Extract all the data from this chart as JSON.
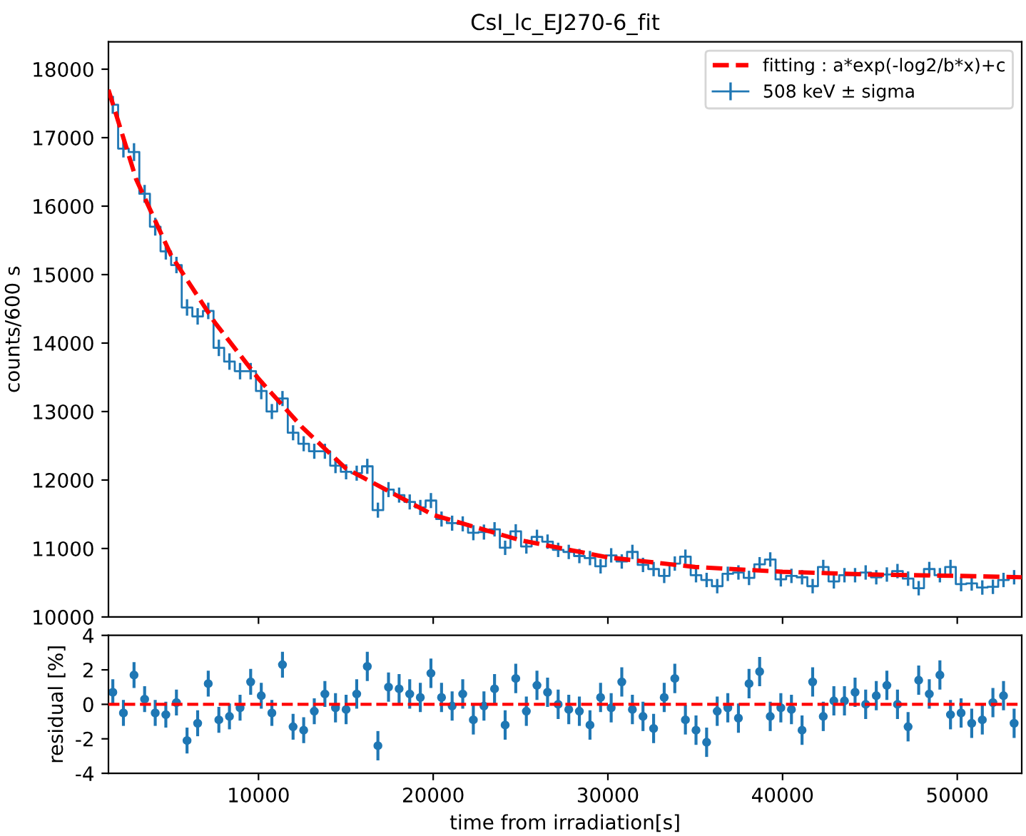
{
  "chart_data": [
    {
      "type": "step",
      "title": "CsI_lc_EJ270-6_fit",
      "ylabel": "counts/600 s",
      "xlim": [
        1410,
        53690
      ],
      "ylim": [
        10000,
        18400
      ],
      "yticks": [
        10000,
        11000,
        12000,
        13000,
        14000,
        15000,
        16000,
        17000,
        18000
      ],
      "tick_labels": "y",
      "legend": "top right",
      "series": [
        {
          "name": "508 keV ± sigma",
          "type": "step",
          "color": "#1f77b4",
          "x": [
            1660,
            2267,
            2874,
            3481,
            4088,
            4695,
            5302,
            5909,
            6516,
            7123,
            7730,
            8337,
            8944,
            9551,
            10158,
            10765,
            11372,
            11979,
            12586,
            13193,
            13800,
            14407,
            15014,
            15621,
            16228,
            16835,
            17442,
            18049,
            18656,
            19263,
            19870,
            20477,
            21084,
            21691,
            22298,
            22905,
            23512,
            24119,
            24726,
            25333,
            25940,
            26547,
            27154,
            27761,
            28368,
            28975,
            29582,
            30189,
            30796,
            31403,
            32010,
            32617,
            33224,
            33831,
            34438,
            35045,
            35652,
            36259,
            36866,
            37473,
            38080,
            38687,
            39294,
            39901,
            40508,
            41115,
            41722,
            42329,
            42936,
            43543,
            44150,
            44757,
            45364,
            45971,
            46578,
            47185,
            47792,
            48399,
            49006,
            49613,
            50220,
            50827,
            51434,
            52041,
            52648,
            53255
          ],
          "values": [
            17480,
            16840,
            16790,
            16180,
            15700,
            15340,
            15140,
            14520,
            14390,
            14470,
            13930,
            13730,
            13590,
            13590,
            13300,
            13000,
            13190,
            12690,
            12530,
            12420,
            12420,
            12210,
            12120,
            12100,
            12200,
            11560,
            11860,
            11780,
            11680,
            11600,
            11700,
            11430,
            11370,
            11360,
            11230,
            11240,
            11280,
            11010,
            11250,
            11030,
            11170,
            11100,
            10980,
            10950,
            10890,
            10860,
            10740,
            10900,
            10810,
            10950,
            10760,
            10700,
            10600,
            10780,
            10880,
            10610,
            10540,
            10450,
            10630,
            10650,
            10570,
            10770,
            10840,
            10550,
            10600,
            10580,
            10450,
            10730,
            10520,
            10610,
            10610,
            10650,
            10580,
            10620,
            10670,
            10560,
            10420,
            10700,
            10610,
            10730,
            10480,
            10490,
            10430,
            10440,
            10540,
            10580
          ],
          "errors": [
            130,
            130,
            130,
            130,
            130,
            120,
            120,
            120,
            120,
            120,
            120,
            120,
            120,
            120,
            120,
            110,
            110,
            110,
            110,
            110,
            110,
            110,
            110,
            110,
            110,
            110,
            110,
            110,
            110,
            110,
            110,
            110,
            110,
            110,
            110,
            110,
            105,
            105,
            105,
            105,
            105,
            105,
            105,
            105,
            105,
            105,
            105,
            105,
            105,
            105,
            105,
            105,
            105,
            105,
            105,
            105,
            105,
            105,
            105,
            105,
            105,
            105,
            105,
            105,
            105,
            105,
            105,
            105,
            105,
            105,
            105,
            105,
            105,
            105,
            105,
            105,
            105,
            105,
            105,
            105,
            105,
            105,
            105,
            105,
            105,
            105
          ]
        },
        {
          "name": "fitting : a*exp(-log2/b*x)+c",
          "type": "line",
          "color": "#ff0000",
          "line_style": "dashed",
          "x": [
            1410,
            3000,
            5000,
            7500,
            10000,
            12500,
            15000,
            20000,
            25000,
            30000,
            35000,
            40000,
            45000,
            50000,
            53690
          ],
          "values": [
            17700,
            16390,
            15280,
            14300,
            13480,
            12770,
            12170,
            11490,
            11120,
            10870,
            10730,
            10660,
            10620,
            10600,
            10580
          ]
        }
      ]
    },
    {
      "type": "scatter",
      "xlabel": "time from irradiation[s]",
      "ylabel": "residual [%]",
      "xlim": [
        1410,
        53690
      ],
      "ylim": [
        -4,
        4
      ],
      "xticks": [
        10000,
        20000,
        30000,
        40000,
        50000
      ],
      "yticks": [
        -4,
        -2,
        0,
        2,
        4
      ],
      "marker": "circle",
      "ref_lines": [
        {
          "axis": "y",
          "value": 0,
          "color": "#ff0000",
          "line_style": "dashed"
        }
      ],
      "series": [
        {
          "color": "#1f77b4",
          "x": [
            1660,
            2267,
            2874,
            3481,
            4088,
            4695,
            5302,
            5909,
            6516,
            7123,
            7730,
            8337,
            8944,
            9551,
            10158,
            10765,
            11372,
            11979,
            12586,
            13193,
            13800,
            14407,
            15014,
            15621,
            16228,
            16835,
            17442,
            18049,
            18656,
            19263,
            19870,
            20477,
            21084,
            21691,
            22298,
            22905,
            23512,
            24119,
            24726,
            25333,
            25940,
            26547,
            27154,
            27761,
            28368,
            28975,
            29582,
            30189,
            30796,
            31403,
            32010,
            32617,
            33224,
            33831,
            34438,
            35045,
            35652,
            36259,
            36866,
            37473,
            38080,
            38687,
            39294,
            39901,
            40508,
            41115,
            41722,
            42329,
            42936,
            43543,
            44150,
            44757,
            45364,
            45971,
            46578,
            47185,
            47792,
            48399,
            49006,
            49613,
            50220,
            50827,
            51434,
            52041,
            52648,
            53255
          ],
          "values": [
            0.7,
            -0.5,
            1.7,
            0.3,
            -0.5,
            -0.6,
            0.1,
            -2.1,
            -1.1,
            1.2,
            -0.9,
            -0.7,
            -0.2,
            1.3,
            0.5,
            -0.5,
            2.3,
            -1.3,
            -1.5,
            -0.4,
            0.6,
            -0.2,
            -0.3,
            0.6,
            2.2,
            -2.4,
            1.0,
            0.9,
            0.6,
            0.4,
            1.8,
            0.4,
            -0.1,
            0.6,
            -0.9,
            -0.1,
            0.9,
            -1.2,
            1.5,
            -0.4,
            1.1,
            0.7,
            0.0,
            -0.3,
            -0.4,
            -1.2,
            0.4,
            -0.2,
            1.3,
            -0.3,
            -0.7,
            -1.4,
            0.4,
            1.5,
            -0.9,
            -1.5,
            -2.2,
            -0.4,
            -0.2,
            -0.8,
            1.2,
            1.9,
            -0.7,
            -0.2,
            -0.3,
            -1.5,
            1.3,
            -0.7,
            0.2,
            0.2,
            0.7,
            0.0,
            0.5,
            1.1,
            0.0,
            -1.3,
            1.4,
            0.6,
            1.7,
            -0.6,
            -0.5,
            -1.1,
            -0.9,
            0.1,
            0.5,
            -1.1
          ],
          "errors": [
            0.75,
            0.75,
            0.75,
            0.75,
            0.75,
            0.75,
            0.75,
            0.75,
            0.75,
            0.75,
            0.75,
            0.75,
            0.75,
            0.75,
            0.75,
            0.75,
            0.75,
            0.75,
            0.75,
            0.75,
            0.75,
            0.85,
            0.85,
            0.85,
            0.85,
            0.85,
            0.85,
            0.85,
            0.85,
            0.85,
            0.85,
            0.85,
            0.85,
            0.85,
            0.85,
            0.85,
            0.85,
            0.85,
            0.85,
            0.85,
            0.85,
            0.85,
            0.85,
            0.85,
            0.85,
            0.85,
            0.85,
            0.85,
            0.85,
            0.85,
            0.85,
            0.85,
            0.85,
            0.85,
            0.85,
            0.85,
            0.85,
            0.85,
            0.85,
            0.85,
            0.85,
            0.85,
            0.85,
            0.85,
            0.85,
            0.85,
            0.85,
            0.85,
            0.85,
            0.85,
            0.85,
            0.85,
            0.85,
            0.85,
            0.85,
            0.85,
            0.85,
            0.85,
            0.85,
            0.85,
            0.85,
            0.85,
            0.85,
            0.85,
            0.85,
            0.85
          ]
        }
      ]
    }
  ]
}
